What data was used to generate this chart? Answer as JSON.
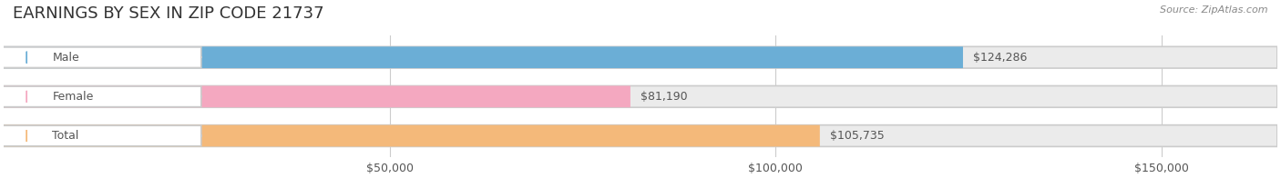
{
  "title": "EARNINGS BY SEX IN ZIP CODE 21737",
  "source": "Source: ZipAtlas.com",
  "categories": [
    "Male",
    "Female",
    "Total"
  ],
  "values": [
    124286,
    81190,
    105735
  ],
  "bar_colors": [
    "#6baed6",
    "#f4a8c0",
    "#f4b97a"
  ],
  "label_colors": [
    "#6baed6",
    "#f4a8c0",
    "#f4b97a"
  ],
  "bar_bg_color": "#ebebeb",
  "bar_label_color": "#888888",
  "text_color": "#555555",
  "title_color": "#333333",
  "background_color": "#ffffff",
  "xmax": 165000,
  "xticks": [
    0,
    50000,
    100000,
    150000
  ],
  "xtick_labels": [
    "$50,000",
    "$100,000",
    "$150,000"
  ],
  "bar_height": 0.55,
  "figsize": [
    14.06,
    1.96
  ]
}
